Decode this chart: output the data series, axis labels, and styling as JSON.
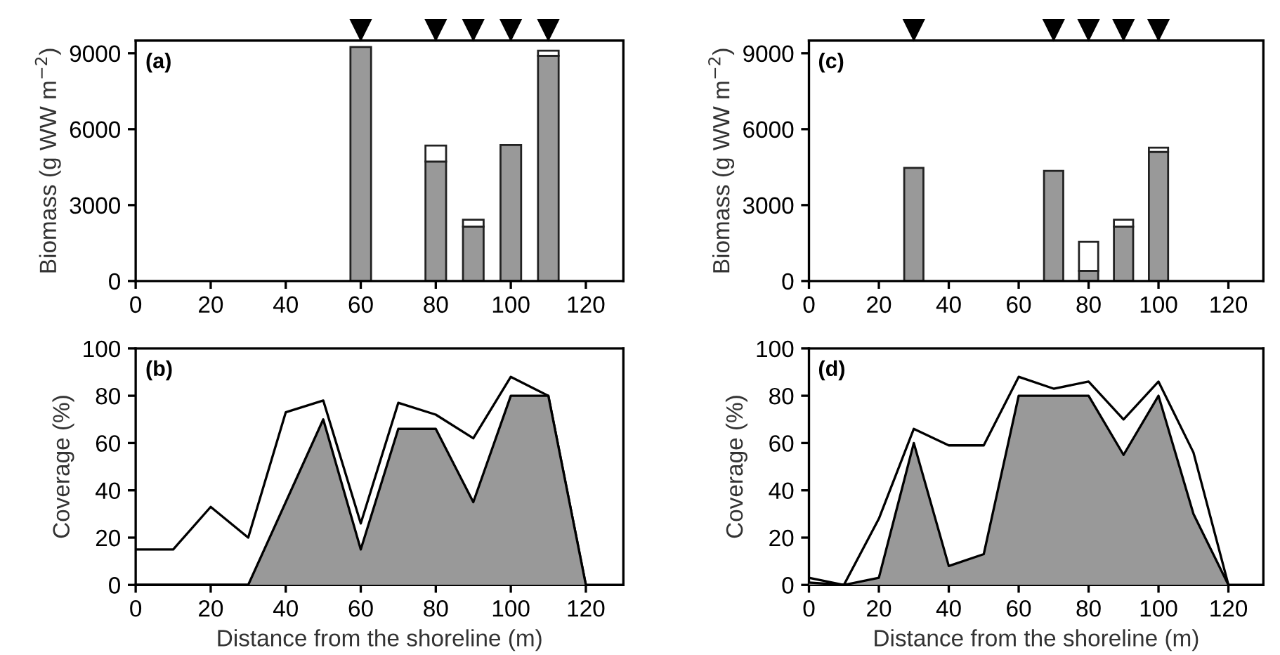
{
  "chart_data": [
    {
      "type": "bar",
      "stacked": true,
      "ylabel": "Biomass (g WW m$^{−2}$)",
      "x": [
        60,
        80,
        90,
        100,
        110
      ],
      "xlim": [
        0,
        130
      ],
      "xticks": [
        0,
        20,
        40,
        60,
        80,
        100,
        120
      ],
      "ylim": [
        0,
        9500
      ],
      "yticks": [
        0,
        3000,
        6000,
        9000
      ],
      "series": [
        {
          "color": "#999999",
          "values": [
            9250,
            4720,
            2150,
            5370,
            8900
          ]
        },
        {
          "color": "#ffffff",
          "values": [
            null,
            630,
            270,
            null,
            200
          ]
        }
      ],
      "annotations": [
        "(a)"
      ]
    },
    {
      "type": "area",
      "ylabel": "Coverage (%)",
      "xlabel": "Distance from the shoreline (m)",
      "x": [
        0,
        10,
        20,
        30,
        40,
        50,
        60,
        70,
        80,
        90,
        100,
        110,
        120
      ],
      "xlim": [
        0,
        130
      ],
      "xticks": [
        0,
        20,
        40,
        60,
        80,
        100,
        120
      ],
      "ylim": [
        0,
        100
      ],
      "yticks": [
        0,
        20,
        40,
        60,
        80,
        100
      ],
      "series": [
        {
          "type": "line",
          "color": "#000000",
          "values": [
            15,
            15,
            33,
            20,
            73,
            78,
            26,
            77,
            72,
            62,
            88,
            80,
            0
          ]
        },
        {
          "type": "area",
          "color": "#999999",
          "values": [
            0,
            0,
            0,
            0,
            35,
            70,
            15,
            66,
            66,
            35,
            80,
            80,
            0
          ]
        }
      ],
      "annotations": [
        "(b)"
      ]
    },
    {
      "type": "bar",
      "stacked": true,
      "ylabel": "Biomass (g WW m$^{−2}$)",
      "x": [
        30,
        70,
        80,
        90,
        100
      ],
      "xlim": [
        0,
        130
      ],
      "xticks": [
        0,
        20,
        40,
        60,
        80,
        100,
        120
      ],
      "ylim": [
        0,
        9500
      ],
      "yticks": [
        0,
        3000,
        6000,
        9000
      ],
      "series": [
        {
          "color": "#999999",
          "values": [
            4470,
            4350,
            400,
            2150,
            5100
          ]
        },
        {
          "color": "#ffffff",
          "values": [
            null,
            null,
            1150,
            270,
            170
          ]
        }
      ],
      "annotations": [
        "(c)"
      ]
    },
    {
      "type": "area",
      "ylabel": "Coverage (%)",
      "xlabel": "Distance from the shoreline (m)",
      "x": [
        0,
        10,
        20,
        30,
        40,
        50,
        60,
        70,
        80,
        90,
        100,
        110,
        120
      ],
      "xlim": [
        0,
        130
      ],
      "xticks": [
        0,
        20,
        40,
        60,
        80,
        100,
        120
      ],
      "ylim": [
        0,
        100
      ],
      "yticks": [
        0,
        20,
        40,
        60,
        80,
        100
      ],
      "series": [
        {
          "type": "line",
          "color": "#000000",
          "values": [
            3,
            0,
            28,
            66,
            59,
            59,
            88,
            83,
            86,
            70,
            86,
            56,
            0
          ]
        },
        {
          "type": "area",
          "color": "#999999",
          "values": [
            1,
            0,
            3,
            60,
            8,
            13,
            80,
            80,
            80,
            55,
            80,
            30,
            0
          ]
        }
      ],
      "annotations": [
        "(d)"
      ]
    }
  ]
}
